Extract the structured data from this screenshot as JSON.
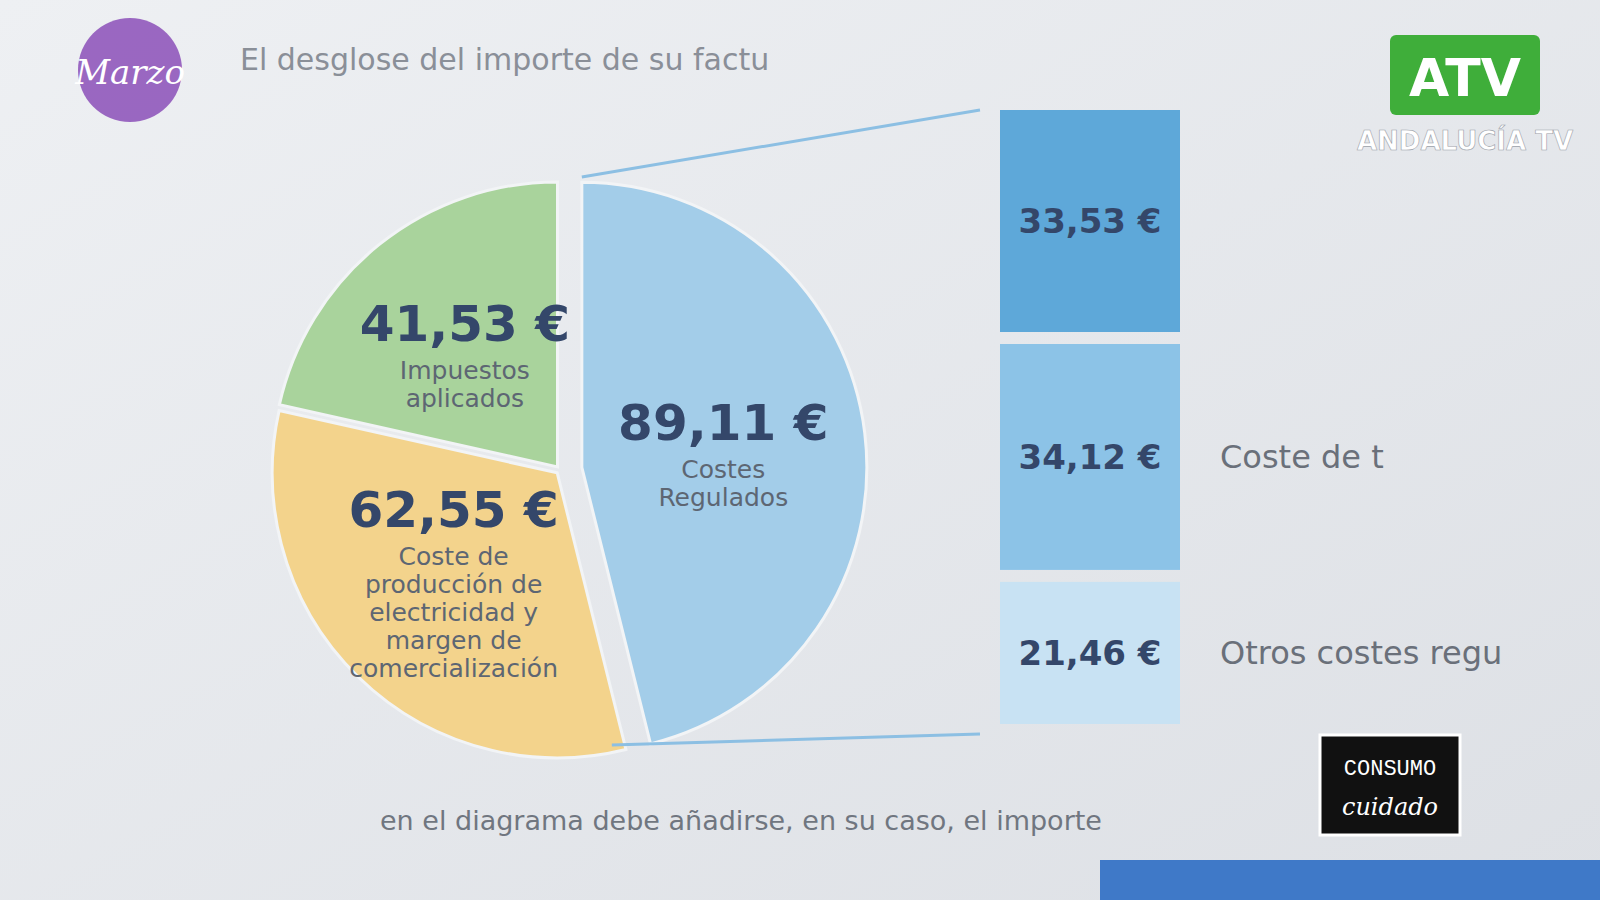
{
  "chart_data": [
    {
      "type": "pie",
      "title": "El desglose del importe de su factu",
      "categories": [
        "Costes Regulados",
        "Coste de producción de electricidad y margen de comercialización",
        "Impuestos aplicados"
      ],
      "values": [
        89.11,
        62.55,
        41.53
      ],
      "value_labels": [
        "89,11 €",
        "62,55 €",
        "41,53 €"
      ],
      "colors": [
        "#a3cde9",
        "#f3d38c",
        "#a9d39c"
      ],
      "data_labels": true,
      "annotations": [
        "en el diagrama debe añadirse, en su caso, el importe"
      ]
    },
    {
      "type": "bar",
      "stacked": true,
      "categories": [
        null,
        "Coste de t",
        "Otros costes regu"
      ],
      "values": [
        33.53,
        34.12,
        21.46
      ],
      "value_labels": [
        "33,53 €",
        "34,12 €",
        "21,46 €"
      ],
      "colors": [
        "#5ea8d9",
        "#8cc3e7",
        "#c8e2f3"
      ],
      "data_labels": true,
      "tick_labels": false
    }
  ],
  "overlays": {
    "channel": "ATV",
    "channel_sub": "ANDALUCÍA TV",
    "event": "Marzo",
    "program": [
      "CONSUMO",
      "cuidado"
    ]
  }
}
